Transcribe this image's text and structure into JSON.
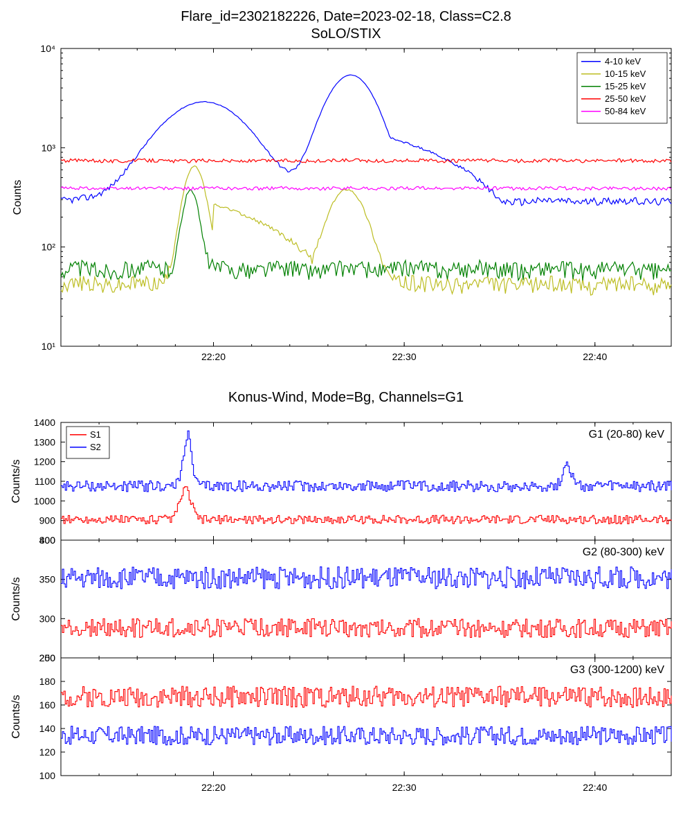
{
  "global": {
    "background_color": "#ffffff",
    "axis_color": "#000000",
    "tick_fontsize": 14,
    "title_fontsize": 20,
    "ylabel_fontsize": 16,
    "legend_fontsize": 13,
    "line_width": 1.2
  },
  "title_line1": "Flare_id=2302182226, Date=2023-02-18, Class=C2.8",
  "title_line2": "SoLO/STIX",
  "x_axis": {
    "min_min": 12,
    "max_min": 44,
    "ticks": [
      20,
      30,
      40
    ],
    "tick_labels": [
      "22:20",
      "22:30",
      "22:40"
    ]
  },
  "top_chart": {
    "type": "line-log",
    "ylabel": "Counts",
    "yscale": "log",
    "ylim": [
      10,
      10000
    ],
    "yticks": [
      10,
      100,
      1000,
      10000
    ],
    "ytick_labels": [
      "10¹",
      "10²",
      "10³",
      "10⁴"
    ],
    "legend_position": "top-right",
    "series": [
      {
        "name": "4-10 keV",
        "color": "#0000ff",
        "base": 290,
        "noise": 25,
        "peaks": [
          {
            "t": 19.5,
            "amp": 2900,
            "w": 2.8
          },
          {
            "t": 27.2,
            "amp": 5400,
            "w": 1.6
          }
        ],
        "tail": {
          "start": 29,
          "end": 35,
          "to": 300
        }
      },
      {
        "name": "10-15 keV",
        "color": "#bcbd22",
        "base": 42,
        "noise": 8,
        "peaks": [
          {
            "t": 19.0,
            "amp": 650,
            "w": 0.7
          },
          {
            "t": 27.0,
            "amp": 380,
            "w": 1.2
          }
        ],
        "tail": {
          "start": 20,
          "end": 26,
          "to": 70
        }
      },
      {
        "name": "15-25 keV",
        "color": "#008000",
        "base": 60,
        "noise": 12,
        "peaks": [
          {
            "t": 18.8,
            "amp": 380,
            "w": 0.5
          }
        ]
      },
      {
        "name": "25-50 keV",
        "color": "#ff0000",
        "base": 740,
        "noise": 30,
        "peaks": []
      },
      {
        "name": "50-84 keV",
        "color": "#ff00ff",
        "base": 390,
        "noise": 15,
        "peaks": []
      }
    ]
  },
  "mid_title": "Konus-Wind, Mode=Bg, Channels=G1",
  "bottom_charts": {
    "ylabel": "Counts/s",
    "legend": {
      "items": [
        {
          "name": "S1",
          "color": "#ff0000"
        },
        {
          "name": "S2",
          "color": "#0000ff"
        }
      ],
      "position": "top-left-panel1"
    },
    "panels": [
      {
        "label": "G1 (20-80) keV",
        "ylim": [
          800,
          1400
        ],
        "yticks": [
          800,
          900,
          1000,
          1100,
          1200,
          1300,
          1400
        ],
        "series": [
          {
            "name": "S1",
            "color": "#ff0000",
            "base": 905,
            "noise": 22,
            "peaks": [
              {
                "t": 18.5,
                "amp": 1060,
                "w": 0.4
              }
            ]
          },
          {
            "name": "S2",
            "color": "#0000ff",
            "base": 1075,
            "noise": 28,
            "peaks": [
              {
                "t": 18.6,
                "amp": 1335,
                "w": 0.3
              },
              {
                "t": 38.5,
                "amp": 1195,
                "w": 0.3
              }
            ]
          }
        ]
      },
      {
        "label": "G2 (80-300) keV",
        "ylim": [
          250,
          400
        ],
        "yticks": [
          250,
          300,
          350,
          400
        ],
        "series": [
          {
            "name": "S1",
            "color": "#ff0000",
            "base": 288,
            "noise": 12,
            "peaks": []
          },
          {
            "name": "S2",
            "color": "#0000ff",
            "base": 352,
            "noise": 14,
            "peaks": []
          }
        ]
      },
      {
        "label": "G3 (300-1200) keV",
        "ylim": [
          100,
          200
        ],
        "yticks": [
          100,
          120,
          140,
          160,
          180,
          200
        ],
        "series": [
          {
            "name": "S1",
            "color": "#ff0000",
            "base": 167,
            "noise": 9,
            "peaks": []
          },
          {
            "name": "S2",
            "color": "#0000ff",
            "base": 134,
            "noise": 8,
            "peaks": []
          }
        ]
      }
    ]
  }
}
